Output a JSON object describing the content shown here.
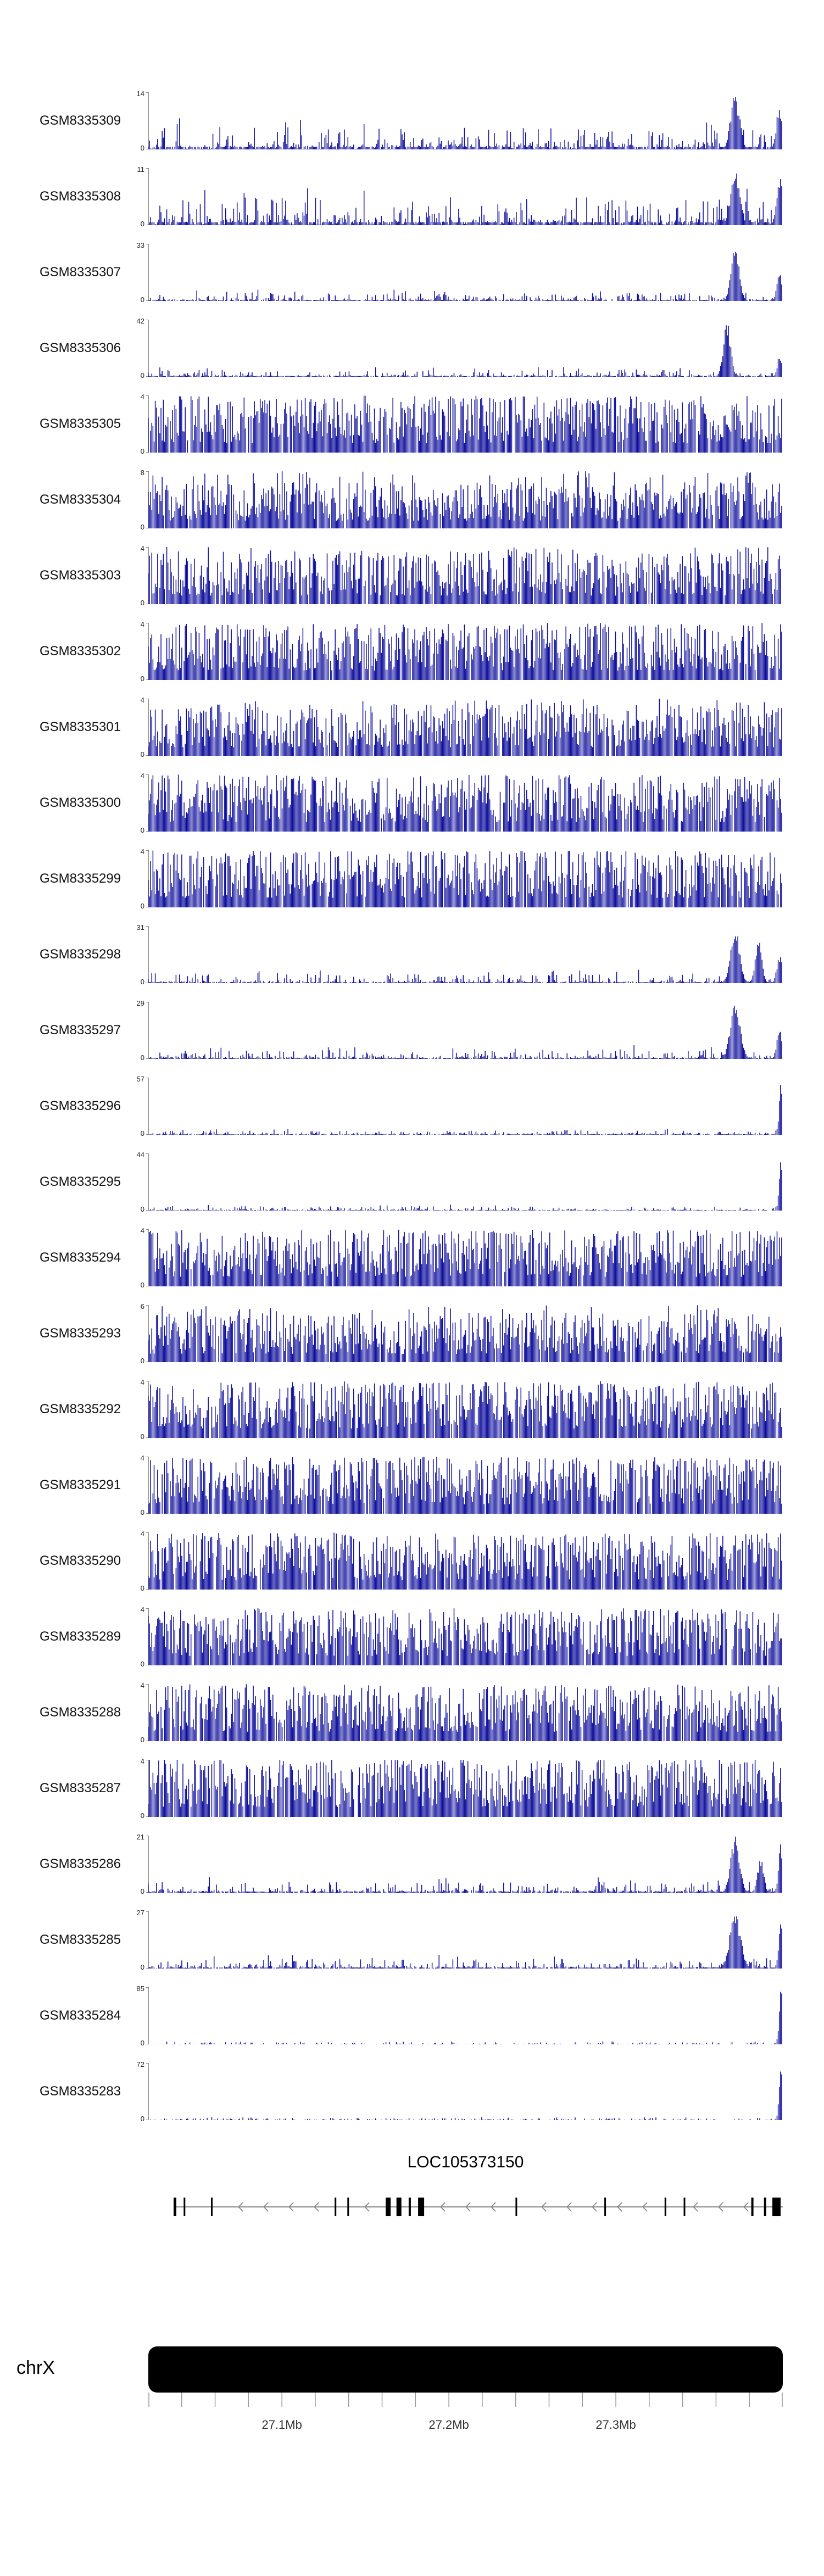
{
  "chart_data": {
    "type": "area",
    "title": "",
    "description": "Genome-browser read-coverage histogram tracks for 27 GEO samples over chrX ~27.02-27.40 Mb, with gene model LOC105373150 (minus strand) and chrX ideogram/axis below.",
    "signal_color": "#0d0d9c",
    "axis_color": "#8a8a8a",
    "x_axis": {
      "chromosome": "chrX",
      "start_mb": 27.02,
      "end_mb": 27.4,
      "minor_tick_mb": 0.02,
      "unit": "Mb",
      "tick_labels": [
        {
          "text": "27.1Mb",
          "mb": 27.1
        },
        {
          "text": "27.2Mb",
          "mb": 27.2
        },
        {
          "text": "27.3Mb",
          "mb": 27.3
        }
      ]
    },
    "tracks": [
      {
        "name": "GSM8335309",
        "ymin": 0,
        "ymax": 14,
        "pattern": "peaks",
        "baseline": 0.16,
        "peaks": [
          {
            "pos": 0.925,
            "w": 0.01,
            "h": 1.0
          },
          {
            "pos": 0.995,
            "w": 0.007,
            "h": 0.8
          }
        ]
      },
      {
        "name": "GSM8335308",
        "ymin": 0,
        "ymax": 11,
        "pattern": "peaks",
        "baseline": 0.2,
        "peaks": [
          {
            "pos": 0.925,
            "w": 0.01,
            "h": 1.0
          },
          {
            "pos": 0.995,
            "w": 0.007,
            "h": 0.85
          }
        ]
      },
      {
        "name": "GSM8335307",
        "ymin": 0,
        "ymax": 33,
        "pattern": "peaks",
        "baseline": 0.06,
        "peaks": [
          {
            "pos": 0.925,
            "w": 0.009,
            "h": 1.0
          },
          {
            "pos": 0.995,
            "w": 0.006,
            "h": 0.5
          }
        ]
      },
      {
        "name": "GSM8335306",
        "ymin": 0,
        "ymax": 42,
        "pattern": "peaks",
        "baseline": 0.05,
        "peaks": [
          {
            "pos": 0.912,
            "w": 0.008,
            "h": 1.0
          },
          {
            "pos": 0.995,
            "w": 0.005,
            "h": 0.4
          }
        ]
      },
      {
        "name": "GSM8335305",
        "ymin": 0,
        "ymax": 4,
        "pattern": "dense",
        "baseline": 0.55,
        "peaks": []
      },
      {
        "name": "GSM8335304",
        "ymin": 0,
        "ymax": 8,
        "pattern": "dense",
        "baseline": 0.45,
        "peaks": []
      },
      {
        "name": "GSM8335303",
        "ymin": 0,
        "ymax": 4,
        "pattern": "dense",
        "baseline": 0.5,
        "peaks": []
      },
      {
        "name": "GSM8335302",
        "ymin": 0,
        "ymax": 4,
        "pattern": "dense",
        "baseline": 0.55,
        "peaks": []
      },
      {
        "name": "GSM8335301",
        "ymin": 0,
        "ymax": 4,
        "pattern": "dense",
        "baseline": 0.5,
        "peaks": []
      },
      {
        "name": "GSM8335300",
        "ymin": 0,
        "ymax": 4,
        "pattern": "dense",
        "baseline": 0.55,
        "peaks": []
      },
      {
        "name": "GSM8335299",
        "ymin": 0,
        "ymax": 4,
        "pattern": "dense",
        "baseline": 0.55,
        "peaks": []
      },
      {
        "name": "GSM8335298",
        "ymin": 0,
        "ymax": 31,
        "pattern": "peaks",
        "baseline": 0.07,
        "peaks": [
          {
            "pos": 0.925,
            "w": 0.01,
            "h": 1.0
          },
          {
            "pos": 0.962,
            "w": 0.007,
            "h": 0.8
          },
          {
            "pos": 0.995,
            "w": 0.006,
            "h": 0.5
          }
        ]
      },
      {
        "name": "GSM8335297",
        "ymin": 0,
        "ymax": 29,
        "pattern": "peaks",
        "baseline": 0.07,
        "peaks": [
          {
            "pos": 0.925,
            "w": 0.011,
            "h": 1.0
          },
          {
            "pos": 0.995,
            "w": 0.006,
            "h": 0.55
          }
        ]
      },
      {
        "name": "GSM8335296",
        "ymin": 0,
        "ymax": 57,
        "pattern": "peaks",
        "baseline": 0.03,
        "peaks": [
          {
            "pos": 0.997,
            "w": 0.004,
            "h": 1.0
          }
        ]
      },
      {
        "name": "GSM8335295",
        "ymin": 0,
        "ymax": 44,
        "pattern": "peaks",
        "baseline": 0.03,
        "peaks": [
          {
            "pos": 0.997,
            "w": 0.004,
            "h": 1.0
          }
        ]
      },
      {
        "name": "GSM8335294",
        "ymin": 0,
        "ymax": 4,
        "pattern": "dense",
        "baseline": 0.55,
        "peaks": []
      },
      {
        "name": "GSM8335293",
        "ymin": 0,
        "ymax": 6,
        "pattern": "dense",
        "baseline": 0.48,
        "peaks": []
      },
      {
        "name": "GSM8335292",
        "ymin": 0,
        "ymax": 4,
        "pattern": "dense",
        "baseline": 0.55,
        "peaks": []
      },
      {
        "name": "GSM8335291",
        "ymin": 0,
        "ymax": 4,
        "pattern": "dense",
        "baseline": 0.55,
        "peaks": []
      },
      {
        "name": "GSM8335290",
        "ymin": 0,
        "ymax": 4,
        "pattern": "dense",
        "baseline": 0.55,
        "peaks": []
      },
      {
        "name": "GSM8335289",
        "ymin": 0,
        "ymax": 4,
        "pattern": "dense",
        "baseline": 0.55,
        "peaks": []
      },
      {
        "name": "GSM8335288",
        "ymin": 0,
        "ymax": 4,
        "pattern": "dense",
        "baseline": 0.55,
        "peaks": []
      },
      {
        "name": "GSM8335287",
        "ymin": 0,
        "ymax": 4,
        "pattern": "dense",
        "baseline": 0.58,
        "peaks": []
      },
      {
        "name": "GSM8335286",
        "ymin": 0,
        "ymax": 21,
        "pattern": "peaks",
        "baseline": 0.08,
        "peaks": [
          {
            "pos": 0.925,
            "w": 0.01,
            "h": 1.0
          },
          {
            "pos": 0.965,
            "w": 0.007,
            "h": 0.6
          },
          {
            "pos": 0.997,
            "w": 0.005,
            "h": 0.9
          }
        ]
      },
      {
        "name": "GSM8335285",
        "ymin": 0,
        "ymax": 27,
        "pattern": "peaks",
        "baseline": 0.07,
        "peaks": [
          {
            "pos": 0.925,
            "w": 0.012,
            "h": 1.0
          },
          {
            "pos": 0.997,
            "w": 0.005,
            "h": 0.8
          }
        ]
      },
      {
        "name": "GSM8335284",
        "ymin": 0,
        "ymax": 85,
        "pattern": "peaks",
        "baseline": 0.015,
        "peaks": [
          {
            "pos": 0.997,
            "w": 0.004,
            "h": 1.0
          }
        ]
      },
      {
        "name": "GSM8335283",
        "ymin": 0,
        "ymax": 72,
        "pattern": "peaks",
        "baseline": 0.015,
        "peaks": [
          {
            "pos": 0.997,
            "w": 0.004,
            "h": 1.0
          }
        ]
      }
    ],
    "gene_track": {
      "gene_name": "LOC105373150",
      "strand": "-",
      "line_start_frac": 0.04,
      "line_end_frac": 1.0,
      "exons": [
        {
          "pos": 0.042,
          "w": 5
        },
        {
          "pos": 0.057,
          "w": 3
        },
        {
          "pos": 0.1,
          "w": 3
        },
        {
          "pos": 0.295,
          "w": 3
        },
        {
          "pos": 0.315,
          "w": 3
        },
        {
          "pos": 0.378,
          "w": 9
        },
        {
          "pos": 0.395,
          "w": 9
        },
        {
          "pos": 0.412,
          "w": 4
        },
        {
          "pos": 0.43,
          "w": 11
        },
        {
          "pos": 0.58,
          "w": 3
        },
        {
          "pos": 0.72,
          "w": 3
        },
        {
          "pos": 0.815,
          "w": 3
        },
        {
          "pos": 0.845,
          "w": 3
        },
        {
          "pos": 0.952,
          "w": 4
        },
        {
          "pos": 0.972,
          "w": 4
        },
        {
          "pos": 0.99,
          "w": 15
        }
      ]
    },
    "ideogram": {
      "chromosome": "chrX",
      "color": "#000000"
    }
  }
}
